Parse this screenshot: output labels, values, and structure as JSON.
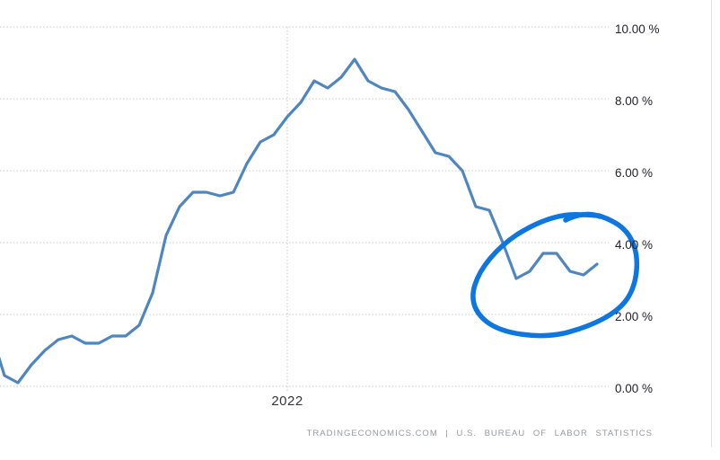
{
  "chart_data": {
    "type": "line",
    "frequency": "monthly",
    "unit": "percent",
    "months": [
      "2020-03",
      "2020-04",
      "2020-05",
      "2020-06",
      "2020-07",
      "2020-08",
      "2020-09",
      "2020-10",
      "2020-11",
      "2020-12",
      "2021-01",
      "2021-02",
      "2021-03",
      "2021-04",
      "2021-05",
      "2021-06",
      "2021-07",
      "2021-08",
      "2021-09",
      "2021-10",
      "2021-11",
      "2021-12",
      "2022-01",
      "2022-02",
      "2022-03",
      "2022-04",
      "2022-05",
      "2022-06",
      "2022-07",
      "2022-08",
      "2022-09",
      "2022-10",
      "2022-11",
      "2022-12",
      "2023-01",
      "2023-02",
      "2023-03",
      "2023-04",
      "2023-05",
      "2023-06",
      "2023-07",
      "2023-08",
      "2023-09",
      "2023-10",
      "2023-11",
      "2023-12"
    ],
    "values": [
      1.5,
      0.3,
      0.1,
      0.6,
      1.0,
      1.3,
      1.4,
      1.2,
      1.2,
      1.4,
      1.4,
      1.7,
      2.6,
      4.2,
      5.0,
      5.4,
      5.4,
      5.3,
      5.4,
      6.2,
      6.8,
      7.0,
      7.5,
      7.9,
      8.5,
      8.3,
      8.6,
      9.1,
      8.5,
      8.3,
      8.2,
      7.7,
      7.1,
      6.5,
      6.4,
      6.0,
      5.0,
      4.9,
      4.0,
      3.0,
      3.2,
      3.7,
      3.7,
      3.2,
      3.1,
      3.4
    ],
    "line_color": "#4f86c0",
    "line_width": 3.2,
    "ylim": [
      0,
      10
    ],
    "grid": "dotted",
    "grid_color": "#c9c9c9",
    "y_axis": {
      "side": "right",
      "ticks": [
        {
          "label": "10.00 %",
          "value": 10
        },
        {
          "label": "8.00 %",
          "value": 8
        },
        {
          "label": "6.00 %",
          "value": 6
        },
        {
          "label": "4.00 %",
          "value": 4
        },
        {
          "label": "2.00 %",
          "value": 2
        },
        {
          "label": "0.00 %",
          "value": 0
        }
      ]
    },
    "x_axis": {
      "ticks": [
        {
          "label": "2022",
          "month": "2022-01"
        }
      ]
    },
    "annotation": {
      "type": "hand-drawn-circle",
      "color": "#0e76e0",
      "stroke_width": 5.5,
      "encircles": "mid-2023 to end-2023 values (~3.0% to 3.7%)",
      "paths": [
        "M 667 240 C 688 247, 700 256, 706 273 C 712 290, 710 315, 699 332 C 687 350, 660 363, 628 371 C 598 377, 560 372, 542 358 C 528 347, 524 333, 529 317 C 535 298, 552 277, 576 261 C 600 246, 625 237, 648 239 C 655 239, 662 240, 667 240",
        "M 630 245 C 642 239, 656 236, 668 241"
      ]
    }
  },
  "footer": {
    "attribution": "TRADINGECONOMICS.COM | U.S. BUREAU OF LABOR STATISTICS"
  }
}
